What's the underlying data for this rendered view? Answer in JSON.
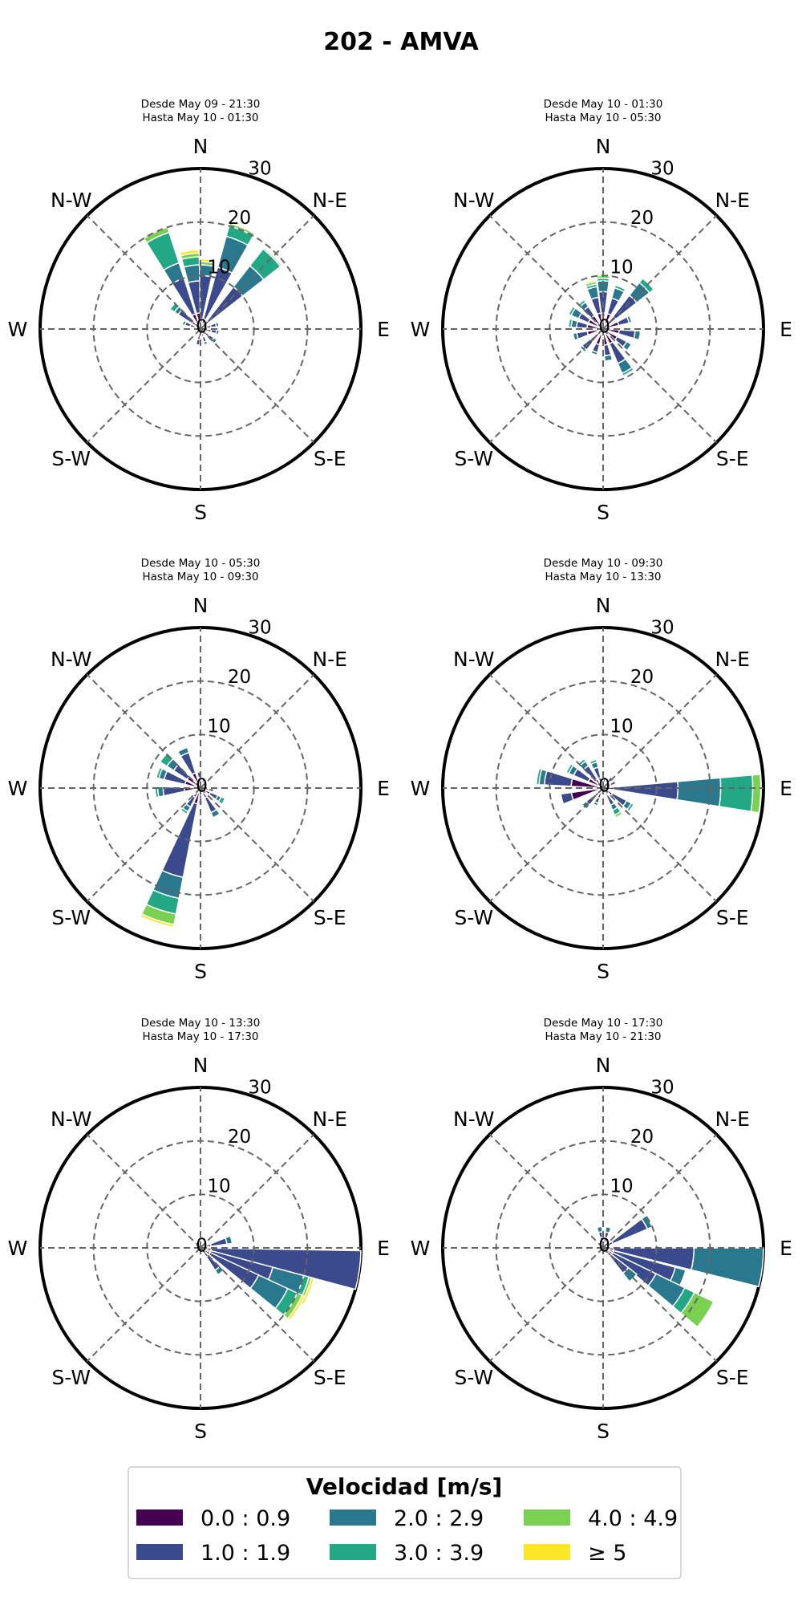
{
  "title": "202 - AMVA",
  "colors": [
    "#440154",
    "#3b4a8c",
    "#2a788e",
    "#22a884",
    "#7ad151",
    "#fde725"
  ],
  "chart_data": [
    {
      "type": "windrose",
      "title_line1": "Desde May 09 - 21:30",
      "title_line2": "Hasta May 10 - 01:30",
      "directions": [
        "N",
        "N-E",
        "E",
        "S-E",
        "S",
        "S-W",
        "W",
        "N-W"
      ],
      "rings": [
        "0",
        "10",
        "20",
        "30"
      ],
      "rmax": 30,
      "bars": [
        {
          "dir": 5,
          "segments": [
            2,
            8,
            2,
            0,
            0.6,
            0.5
          ]
        },
        {
          "dir": 22.5,
          "segments": [
            2,
            10,
            6,
            2,
            0.5,
            0
          ]
        },
        {
          "dir": 45,
          "segments": [
            2,
            8,
            5,
            4,
            0.3,
            0
          ]
        },
        {
          "dir": 75,
          "segments": [
            2,
            1,
            0.5,
            0,
            0,
            0
          ]
        },
        {
          "dir": 100,
          "segments": [
            2,
            1,
            0.5,
            0,
            0,
            0
          ]
        },
        {
          "dir": 130,
          "segments": [
            2,
            1,
            0.7,
            0,
            0,
            0
          ]
        },
        {
          "dir": 160,
          "segments": [
            1.5,
            1,
            0.5,
            0,
            0,
            0
          ]
        },
        {
          "dir": 190,
          "segments": [
            2,
            1,
            0,
            0,
            0,
            0
          ]
        },
        {
          "dir": 225,
          "segments": [
            1,
            0.5,
            0,
            0,
            0,
            0
          ]
        },
        {
          "dir": 290,
          "segments": [
            2,
            1,
            0.5,
            0,
            0,
            0
          ]
        },
        {
          "dir": 310,
          "segments": [
            2,
            3,
            0.8,
            1,
            0,
            0
          ]
        },
        {
          "dir": 335,
          "segments": [
            3,
            7,
            3,
            6,
            1,
            0
          ]
        },
        {
          "dir": 352,
          "segments": [
            3,
            6,
            3,
            1.5,
            0.7,
            0.6
          ]
        }
      ]
    },
    {
      "type": "windrose",
      "title_line1": "Desde May 10 - 01:30",
      "title_line2": "Hasta May 10 - 05:30",
      "directions": [
        "N",
        "N-E",
        "E",
        "S-E",
        "S",
        "S-W",
        "W",
        "N-W"
      ],
      "rings": [
        "0",
        "10",
        "20",
        "30"
      ],
      "rmax": 30,
      "bars": [
        {
          "dir": 0,
          "segments": [
            3,
            4,
            2,
            0.5,
            0.5,
            0.3
          ]
        },
        {
          "dir": 22.5,
          "segments": [
            3,
            3,
            2,
            0.5,
            0,
            0
          ]
        },
        {
          "dir": 45,
          "segments": [
            3,
            5,
            3,
            1,
            0,
            0
          ]
        },
        {
          "dir": 70,
          "segments": [
            3,
            2,
            0.5,
            0,
            0,
            0
          ]
        },
        {
          "dir": 100,
          "segments": [
            3,
            3,
            1,
            0,
            0,
            0
          ]
        },
        {
          "dir": 125,
          "segments": [
            3,
            2,
            1,
            0,
            0,
            0
          ]
        },
        {
          "dir": 150,
          "segments": [
            3,
            4,
            2,
            0.5,
            0,
            0
          ]
        },
        {
          "dir": 170,
          "segments": [
            3,
            2,
            1,
            0,
            0,
            0
          ]
        },
        {
          "dir": 200,
          "segments": [
            3,
            1.5,
            0.5,
            0,
            0,
            0
          ]
        },
        {
          "dir": 225,
          "segments": [
            3,
            2,
            0.5,
            0,
            0,
            0
          ]
        },
        {
          "dir": 255,
          "segments": [
            3,
            2,
            0.7,
            0,
            0,
            0
          ]
        },
        {
          "dir": 280,
          "segments": [
            3,
            2,
            1,
            0.5,
            0,
            0
          ]
        },
        {
          "dir": 300,
          "segments": [
            3,
            2,
            1.5,
            0.5,
            0,
            0
          ]
        },
        {
          "dir": 320,
          "segments": [
            3,
            2,
            1,
            0.5,
            0,
            0
          ]
        },
        {
          "dir": 345,
          "segments": [
            3,
            3,
            2,
            0.5,
            0.5,
            0.3
          ]
        }
      ]
    },
    {
      "type": "windrose",
      "title_line1": "Desde May 10 - 05:30",
      "title_line2": "Hasta May 10 - 09:30",
      "directions": [
        "N",
        "N-E",
        "E",
        "S-E",
        "S",
        "S-W",
        "W",
        "N-W"
      ],
      "rings": [
        "0",
        "10",
        "20",
        "30"
      ],
      "rmax": 30,
      "bars": [
        {
          "dir": 20,
          "segments": [
            1,
            1,
            0,
            0,
            0,
            0
          ]
        },
        {
          "dir": 100,
          "segments": [
            1.5,
            1,
            0,
            0,
            0,
            0
          ]
        },
        {
          "dir": 120,
          "segments": [
            2,
            1.5,
            0.7,
            0.8,
            0,
            0
          ]
        },
        {
          "dir": 150,
          "segments": [
            2,
            3,
            1,
            0,
            0,
            0
          ]
        },
        {
          "dir": 180,
          "segments": [
            2,
            1,
            0,
            0,
            0,
            0
          ]
        },
        {
          "dir": 198,
          "segments": [
            3,
            14,
            4,
            3,
            2,
            0.5
          ]
        },
        {
          "dir": 215,
          "segments": [
            2,
            2,
            1,
            0.5,
            0,
            0
          ]
        },
        {
          "dir": 265,
          "segments": [
            3,
            4,
            1,
            0.5,
            0,
            0
          ]
        },
        {
          "dir": 290,
          "segments": [
            3,
            4,
            1,
            0.5,
            0,
            0
          ]
        },
        {
          "dir": 310,
          "segments": [
            3,
            3,
            1.5,
            1.5,
            0,
            0
          ]
        },
        {
          "dir": 335,
          "segments": [
            3,
            4,
            1,
            0,
            0,
            0
          ]
        },
        {
          "dir": 355,
          "segments": [
            2,
            1,
            0,
            0,
            0,
            0
          ]
        }
      ]
    },
    {
      "type": "windrose",
      "title_line1": "Desde May 10 - 09:30",
      "title_line2": "Hasta May 10 - 13:30",
      "directions": [
        "N",
        "N-E",
        "E",
        "S-E",
        "S",
        "S-W",
        "W",
        "N-W"
      ],
      "rings": [
        "0",
        "10",
        "20",
        "30"
      ],
      "rmax": 30,
      "bars": [
        {
          "dir": 10,
          "segments": [
            1,
            1,
            0,
            0,
            0,
            0
          ]
        },
        {
          "dir": 40,
          "segments": [
            1.5,
            1,
            0,
            0,
            0,
            0
          ]
        },
        {
          "dir": 65,
          "segments": [
            1.5,
            1,
            0,
            0,
            0,
            0
          ]
        },
        {
          "dir": 92,
          "segments": [
            2,
            12,
            8,
            6,
            1.5,
            0
          ]
        },
        {
          "dir": 125,
          "segments": [
            2,
            3,
            1,
            0.5,
            0,
            0
          ]
        },
        {
          "dir": 150,
          "segments": [
            1.5,
            2,
            1,
            1,
            0.5,
            0
          ]
        },
        {
          "dir": 205,
          "segments": [
            2,
            1,
            0.5,
            0,
            0,
            0
          ]
        },
        {
          "dir": 225,
          "segments": [
            2,
            2,
            1,
            0,
            0,
            0
          ]
        },
        {
          "dir": 255,
          "segments": [
            6,
            2,
            0,
            0,
            0,
            0
          ]
        },
        {
          "dir": 280,
          "segments": [
            6,
            5,
            1,
            0.5,
            0,
            0
          ]
        },
        {
          "dir": 300,
          "segments": [
            3,
            3,
            1,
            0.5,
            0,
            0
          ]
        },
        {
          "dir": 320,
          "segments": [
            2,
            3,
            1,
            0.5,
            0,
            0
          ]
        },
        {
          "dir": 340,
          "segments": [
            2,
            2,
            1,
            0.5,
            0,
            0
          ]
        }
      ]
    },
    {
      "type": "windrose",
      "title_line1": "Desde May 10 - 13:30",
      "title_line2": "Hasta May 10 - 17:30",
      "directions": [
        "N",
        "N-E",
        "E",
        "S-E",
        "S",
        "S-W",
        "W",
        "N-W"
      ],
      "rings": [
        "0",
        "10",
        "20",
        "30"
      ],
      "rmax": 30,
      "bars": [
        {
          "dir": 75,
          "segments": [
            2,
            3,
            1,
            0,
            0,
            0
          ]
        },
        {
          "dir": 98,
          "segments": [
            2,
            28,
            0,
            0,
            0,
            0
          ]
        },
        {
          "dir": 112,
          "segments": [
            2,
            12,
            6,
            1,
            0.5,
            0.5
          ]
        },
        {
          "dir": 122,
          "segments": [
            2,
            10,
            6,
            2,
            1,
            0.5
          ]
        },
        {
          "dir": 140,
          "segments": [
            2,
            3,
            1,
            0,
            0,
            0
          ]
        }
      ]
    },
    {
      "type": "windrose",
      "title_line1": "Desde May 10 - 17:30",
      "title_line2": "Hasta May 10 - 21:30",
      "directions": [
        "N",
        "N-E",
        "E",
        "S-E",
        "S",
        "S-W",
        "W",
        "N-W"
      ],
      "rings": [
        "0",
        "10",
        "20",
        "30"
      ],
      "rmax": 30,
      "bars": [
        {
          "dir": 15,
          "segments": [
            2,
            1,
            1,
            0,
            0,
            0
          ]
        },
        {
          "dir": 60,
          "segments": [
            2,
            7,
            1,
            0,
            0,
            0
          ]
        },
        {
          "dir": 97,
          "segments": [
            2,
            15,
            13,
            0,
            0,
            0
          ]
        },
        {
          "dir": 112,
          "segments": [
            2,
            12,
            2,
            0,
            0,
            0
          ]
        },
        {
          "dir": 123,
          "segments": [
            2,
            9,
            6,
            2,
            4,
            0
          ]
        },
        {
          "dir": 135,
          "segments": [
            2,
            4,
            2,
            0,
            0,
            0
          ]
        },
        {
          "dir": 350,
          "segments": [
            2,
            1,
            1,
            0,
            0,
            0
          ]
        }
      ]
    }
  ],
  "legend": {
    "title": "Velocidad [m/s]",
    "items": [
      {
        "label": "0.0 : 0.9",
        "color": "#440154"
      },
      {
        "label": "2.0 : 2.9",
        "color": "#2a788e"
      },
      {
        "label": "4.0 : 4.9",
        "color": "#7ad151"
      },
      {
        "label": "1.0 : 1.9",
        "color": "#3b4a8c"
      },
      {
        "label": "3.0 : 3.9",
        "color": "#22a884"
      },
      {
        "label": "≥  5",
        "color": "#fde725"
      }
    ]
  }
}
